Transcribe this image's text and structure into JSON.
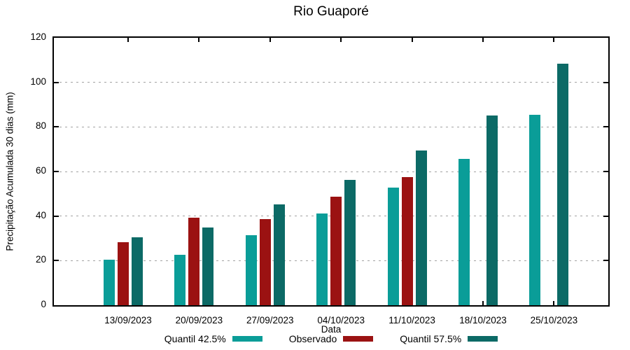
{
  "window": {
    "title": "Rio Guaporé"
  },
  "chart_data": {
    "type": "bar",
    "title": "Rio Guaporé",
    "xlabel": "Data",
    "ylabel": "Precipitação Acumulada 30 dias (mm)",
    "ylim": [
      0,
      120
    ],
    "yticks": [
      0,
      20,
      40,
      60,
      80,
      100,
      120
    ],
    "grid": "horizontal-dotted",
    "legend_position": "bottom-center",
    "categories": [
      "13/09/2023",
      "20/09/2023",
      "27/09/2023",
      "04/10/2023",
      "11/10/2023",
      "18/10/2023",
      "25/10/2023"
    ],
    "series": [
      {
        "name": "Quantil 42.5%",
        "color": "#0a9d98",
        "values": [
          20.3,
          22.5,
          31.5,
          41.2,
          52.8,
          65.6,
          85.5
        ]
      },
      {
        "name": "Observado",
        "color": "#9b1212",
        "values": [
          28.2,
          39.2,
          38.8,
          48.6,
          57.5,
          null,
          null
        ]
      },
      {
        "name": "Quantil 57.5%",
        "color": "#0c6a66",
        "values": [
          30.5,
          35.0,
          45.2,
          56.2,
          69.4,
          85.0,
          108.5
        ]
      }
    ],
    "border_color": "#000000",
    "gridline_color": "#a3a3a3",
    "background": "#ffffff"
  }
}
